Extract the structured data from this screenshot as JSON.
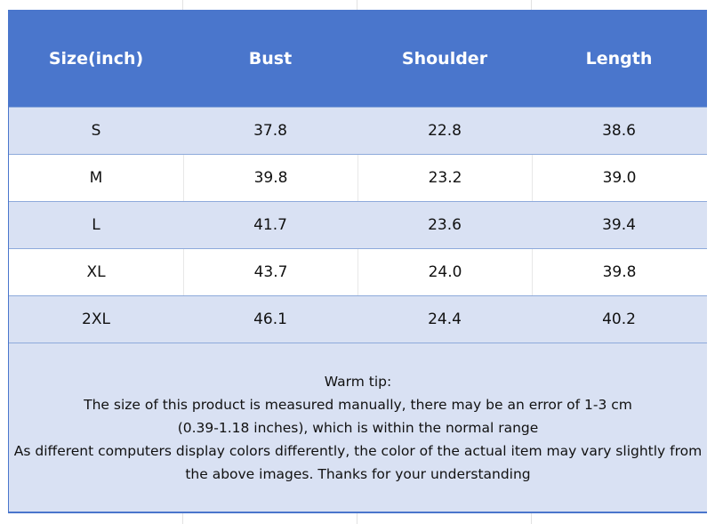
{
  "table": {
    "headers": [
      "Size(inch)",
      "Bust",
      "Shoulder",
      "Length"
    ],
    "rows": [
      [
        "S",
        "37.8",
        "22.8",
        "38.6"
      ],
      [
        "M",
        "39.8",
        "23.2",
        "39.0"
      ],
      [
        "L",
        "41.7",
        "23.6",
        "39.4"
      ],
      [
        "XL",
        "43.7",
        "24.0",
        "39.8"
      ],
      [
        "2XL",
        "46.1",
        "24.4",
        "40.2"
      ]
    ]
  },
  "note": {
    "lines": [
      "Warm tip:",
      "The size of this product is measured manually, there may be an error of 1-3 cm",
      "(0.39-1.18 inches), which is within the normal range",
      "As different computers display colors differently, the color of the actual item may vary slightly from",
      "the above images. Thanks for your understanding"
    ]
  },
  "colors": {
    "header": "#4a76cc",
    "row_alt": "#d9e1f3"
  }
}
